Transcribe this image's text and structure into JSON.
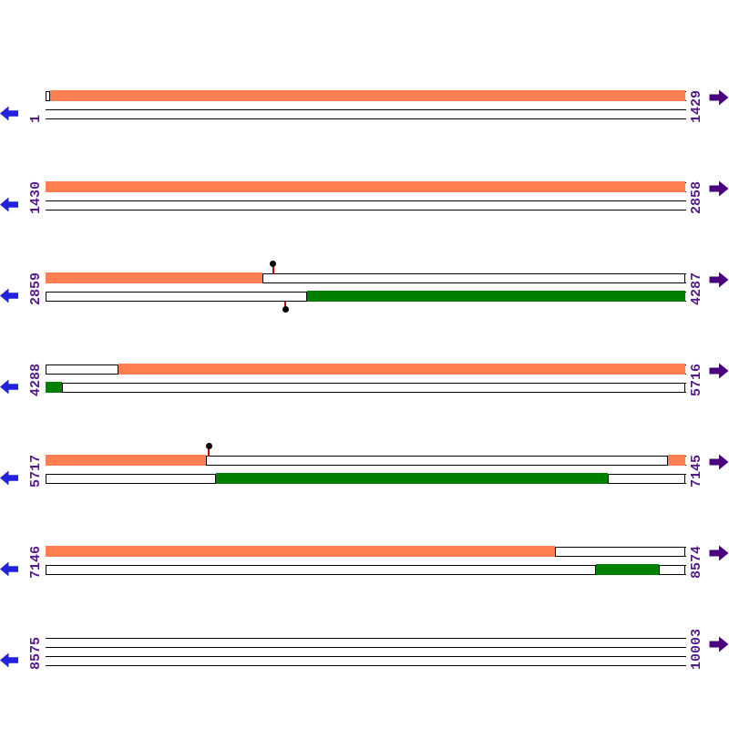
{
  "figure_title": "",
  "colors": {
    "background": "#FFFFFF",
    "line": "#000000",
    "direct_gene": "#FF7F50",
    "complementary_gene": "#008000",
    "outline_fill": "#FFFFFF",
    "left_arrow": "#2222DD",
    "right_arrow": "#4B0082",
    "label_text": "#551A8B",
    "marker_stem": "#CC0000",
    "marker_dot": "#000000"
  },
  "chart_data": {
    "type": "genome-annotation-map",
    "sequence_range": [
      1,
      10003
    ],
    "bases_per_row": 1429,
    "strands": {
      "top_strip": "direct strand genes (coral fill, white outline = non-coding ORF extent)",
      "bottom_strip": "complementary strand genes (green fill, white outline = non-coding ORF extent)"
    },
    "rows": [
      {
        "start_label": "1",
        "end_label": "1429",
        "top_track": [
          {
            "kind": "outline",
            "f0": 0.0,
            "f1": 0.007,
            "seq_from": 1,
            "seq_to": 10
          },
          {
            "kind": "gene",
            "f0": 0.007,
            "f1": 1.0,
            "seq_from": 11,
            "seq_to": 1429
          }
        ],
        "bottom_track": [],
        "markers": []
      },
      {
        "start_label": "1430",
        "end_label": "2858",
        "top_track": [
          {
            "kind": "gene",
            "f0": 0.0,
            "f1": 1.0,
            "seq_from": 1430,
            "seq_to": 2858
          }
        ],
        "bottom_track": [],
        "markers": []
      },
      {
        "start_label": "2859",
        "end_label": "4287",
        "top_track": [
          {
            "kind": "gene",
            "f0": 0.0,
            "f1": 0.339,
            "seq_from": 2859,
            "seq_to": 3343
          },
          {
            "kind": "outline",
            "f0": 0.339,
            "f1": 1.0,
            "seq_from": 3344,
            "seq_to": 4287
          }
        ],
        "bottom_track": [
          {
            "kind": "outline",
            "f0": 0.0,
            "f1": 0.409,
            "seq_from": 2859,
            "seq_to": 3443
          },
          {
            "kind": "gene",
            "f0": 0.409,
            "f1": 1.0,
            "seq_from": 3444,
            "seq_to": 4287
          }
        ],
        "markers": [
          {
            "side": "top",
            "f": 0.356,
            "seq": 3368
          },
          {
            "side": "bottom",
            "f": 0.375,
            "seq": 3395
          }
        ]
      },
      {
        "start_label": "4288",
        "end_label": "5716",
        "top_track": [
          {
            "kind": "outline",
            "f0": 0.0,
            "f1": 0.114,
            "seq_from": 4288,
            "seq_to": 4450
          },
          {
            "kind": "gene",
            "f0": 0.114,
            "f1": 1.0,
            "seq_from": 4451,
            "seq_to": 5716
          }
        ],
        "bottom_track": [
          {
            "kind": "gene",
            "f0": 0.0,
            "f1": 0.026,
            "seq_from": 4288,
            "seq_to": 4325
          },
          {
            "kind": "outline",
            "f0": 0.026,
            "f1": 1.0,
            "seq_from": 4326,
            "seq_to": 5716
          }
        ],
        "markers": []
      },
      {
        "start_label": "5717",
        "end_label": "7145",
        "top_track": [
          {
            "kind": "gene",
            "f0": 0.0,
            "f1": 0.251,
            "seq_from": 5717,
            "seq_to": 6075
          },
          {
            "kind": "outline",
            "f0": 0.251,
            "f1": 0.973,
            "seq_from": 6076,
            "seq_to": 7107
          },
          {
            "kind": "gene",
            "f0": 0.973,
            "f1": 1.0,
            "seq_from": 7108,
            "seq_to": 7145
          }
        ],
        "bottom_track": [
          {
            "kind": "outline",
            "f0": 0.0,
            "f1": 0.266,
            "seq_from": 5717,
            "seq_to": 6097
          },
          {
            "kind": "gene",
            "f0": 0.266,
            "f1": 0.879,
            "seq_from": 6098,
            "seq_to": 6973
          },
          {
            "kind": "outline",
            "f0": 0.879,
            "f1": 1.0,
            "seq_from": 6974,
            "seq_to": 7145
          }
        ],
        "markers": [
          {
            "side": "top",
            "f": 0.255,
            "seq": 6081
          }
        ]
      },
      {
        "start_label": "7146",
        "end_label": "8574",
        "top_track": [
          {
            "kind": "gene",
            "f0": 0.0,
            "f1": 0.796,
            "seq_from": 7146,
            "seq_to": 8283
          },
          {
            "kind": "outline",
            "f0": 0.796,
            "f1": 1.0,
            "seq_from": 8284,
            "seq_to": 8574
          }
        ],
        "bottom_track": [
          {
            "kind": "outline",
            "f0": 0.0,
            "f1": 0.86,
            "seq_from": 7146,
            "seq_to": 8374
          },
          {
            "kind": "gene",
            "f0": 0.86,
            "f1": 0.958,
            "seq_from": 8375,
            "seq_to": 8514
          },
          {
            "kind": "outline",
            "f0": 0.958,
            "f1": 1.0,
            "seq_from": 8515,
            "seq_to": 8574
          }
        ],
        "markers": []
      },
      {
        "start_label": "8575",
        "end_label": "10003",
        "top_track": [],
        "bottom_track": [],
        "markers": []
      }
    ]
  }
}
